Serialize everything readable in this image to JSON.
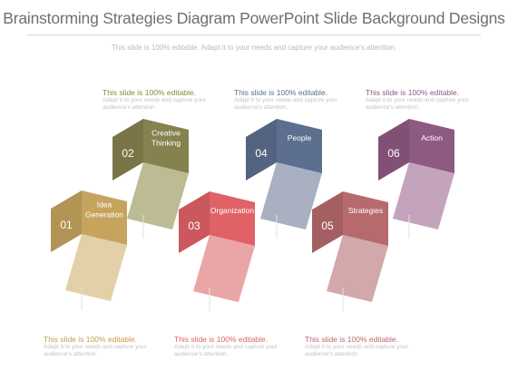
{
  "title": "Brainstorming Strategies Diagram PowerPoint Slide Background Designs",
  "subtitle": "This slide is 100% editable. Adapt it to your needs and capture your audience's attention.",
  "steps": [
    {
      "num": "01",
      "label_lines": [
        "Idea",
        "Generation"
      ],
      "color": "#c6a45e",
      "ribbon": "#e4d0a8"
    },
    {
      "num": "02",
      "label_lines": [
        "Creative",
        "Thinking"
      ],
      "color": "#86824f",
      "ribbon": "#bdbb94"
    },
    {
      "num": "03",
      "label_lines": [
        "Organization"
      ],
      "color": "#e06266",
      "ribbon": "#eaa6a6"
    },
    {
      "num": "04",
      "label_lines": [
        "People"
      ],
      "color": "#5d6f8e",
      "ribbon": "#a8b0c2"
    },
    {
      "num": "05",
      "label_lines": [
        "Strategies"
      ],
      "color": "#b66a6e",
      "ribbon": "#d2a8aa"
    },
    {
      "num": "06",
      "label_lines": [
        "Action"
      ],
      "color": "#8e5a82",
      "ribbon": "#c4a4bd"
    }
  ],
  "captions": {
    "top": [
      {
        "title": "This slide is 100% editable.",
        "body": "Adapt it to your needs and capture your audience's attention.",
        "color": "#8a8a3a"
      },
      {
        "title": "This slide is 100% editable.",
        "body": "Adapt it to your needs and capture your audience's attention.",
        "color": "#5d6f8e"
      },
      {
        "title": "This slide is 100% editable.",
        "body": "Adapt it to your needs and capture your audience's attention.",
        "color": "#8e5a82"
      }
    ],
    "bottom": [
      {
        "title": "This slide is 100% editable.",
        "body": "Adapt it to your needs and capture your audience's attention.",
        "color": "#c89a4a"
      },
      {
        "title": "This slide is 100% editable.",
        "body": "Adapt it to your needs and capture your audience's attention.",
        "color": "#e06266"
      },
      {
        "title": "This slide is 100% editable.",
        "body": "Adapt it to your needs and capture your audience's attention.",
        "color": "#b66a6e"
      }
    ]
  }
}
